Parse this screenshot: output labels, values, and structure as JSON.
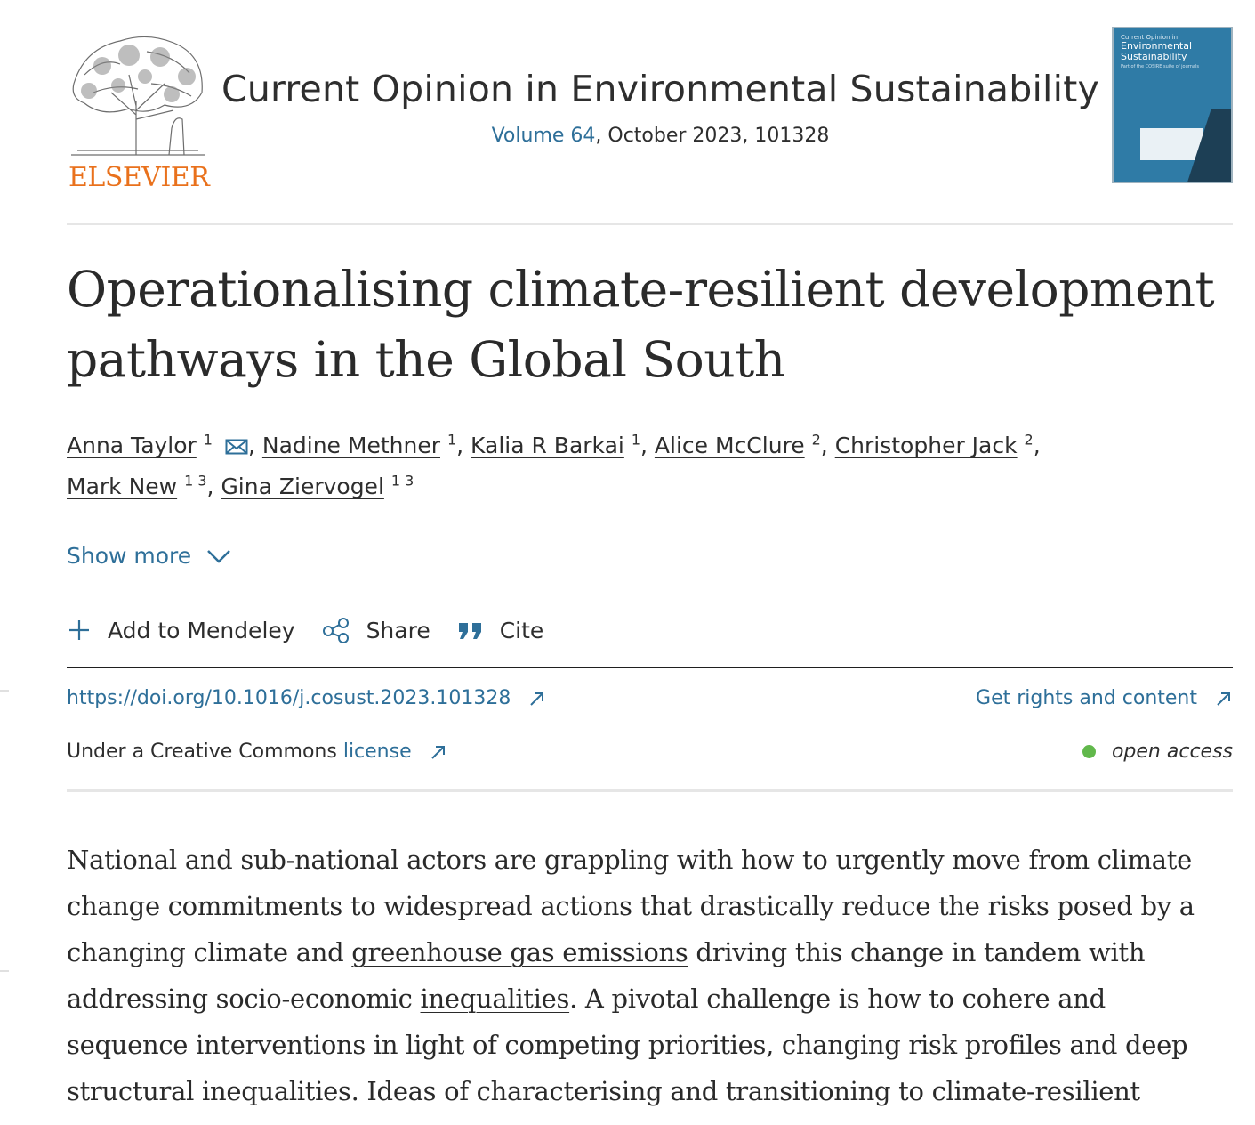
{
  "publisher": {
    "name": "ELSEVIER"
  },
  "journal": {
    "title": "Current Opinion in Environmental Sustainability",
    "volume": "Volume 64",
    "issue_rest": ", October 2023, 101328"
  },
  "cover": {
    "line1": "Current Opinion in",
    "line2": "Environmental",
    "line3": "Sustainability",
    "line4": "Part of the COSIRE suite of journals"
  },
  "article": {
    "title": "Operationalising climate-resilient development pathways in the Global South"
  },
  "authors": [
    {
      "name": "Anna Taylor",
      "aff": "1"
    },
    {
      "name": "Nadine Methner",
      "aff": "1"
    },
    {
      "name": "Kalia R Barkai",
      "aff": "1"
    },
    {
      "name": "Alice McClure",
      "aff": "2"
    },
    {
      "name": "Christopher Jack",
      "aff": "2"
    },
    {
      "name": "Mark New",
      "aff": "1 3"
    },
    {
      "name": "Gina Ziervogel",
      "aff": "1 3"
    }
  ],
  "show_more": "Show more",
  "actions": {
    "mendeley": "Add to Mendeley",
    "share": "Share",
    "cite": "Cite"
  },
  "doi": "https://doi.org/10.1016/j.cosust.2023.101328",
  "rights": "Get rights and content",
  "license": {
    "prefix": "Under a Creative Commons ",
    "link": "license"
  },
  "access": "open access",
  "colors": {
    "link": "#2e6f99",
    "publisher": "#e9711c",
    "open_access_dot": "#61b84b"
  },
  "abstract": {
    "part1": "National and sub-national actors are grappling with how to urgently move from climate change commitments to widespread actions that drastically reduce the risks posed by a changing climate and ",
    "term1": "greenhouse gas emissions",
    "part2": " driving this change in tandem with addressing socio-economic ",
    "term2": "inequalities",
    "part3": ". A pivotal challenge is how to cohere and sequence interventions in light of competing priorities, changing risk profiles and deep structural inequalities. Ideas of characterising and transitioning to climate-resilient"
  }
}
